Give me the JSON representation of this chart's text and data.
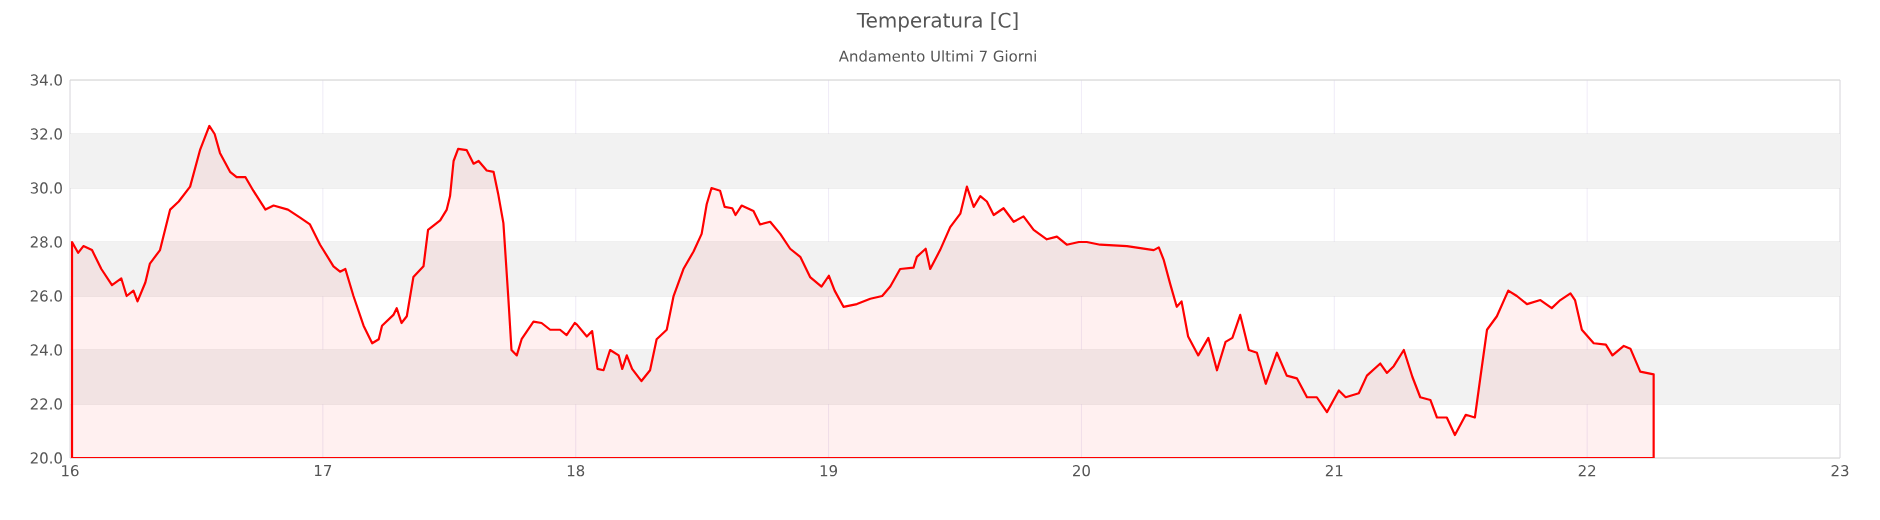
{
  "chart_data": {
    "type": "area",
    "title": "Temperatura [C]",
    "subtitle": "Andamento Ultimi 7 Giorni",
    "xlim": [
      16,
      23
    ],
    "ylim": [
      20,
      34
    ],
    "xticks": [
      16,
      17,
      18,
      19,
      20,
      21,
      22,
      23
    ],
    "yticks": [
      {
        "value": 20,
        "label": "20.0"
      },
      {
        "value": 22,
        "label": "22.0"
      },
      {
        "value": 24,
        "label": "24.0"
      },
      {
        "value": 26,
        "label": "26.0"
      },
      {
        "value": 28,
        "label": "28.0"
      },
      {
        "value": 30,
        "label": "30.0"
      },
      {
        "value": 32,
        "label": "32.0"
      },
      {
        "value": 34,
        "label": "34.0"
      }
    ],
    "grid": true,
    "bands": [
      {
        "axis": "y",
        "from": 22,
        "to": 24,
        "color": "#f2f2f2"
      },
      {
        "axis": "y",
        "from": 26,
        "to": 28,
        "color": "#f2f2f2"
      },
      {
        "axis": "y",
        "from": 30,
        "to": 32,
        "color": "#f2f2f2"
      }
    ],
    "series": [
      {
        "color": "#ff0000",
        "x": [
          16.008,
          16.032,
          16.053,
          16.087,
          16.124,
          16.166,
          16.203,
          16.224,
          16.251,
          16.267,
          16.298,
          16.316,
          16.356,
          16.396,
          16.43,
          16.475,
          16.514,
          16.551,
          16.572,
          16.593,
          16.633,
          16.659,
          16.694,
          16.725,
          16.773,
          16.805,
          16.862,
          16.91,
          16.949,
          16.989,
          17.042,
          17.068,
          17.089,
          17.121,
          17.161,
          17.195,
          17.221,
          17.234,
          17.279,
          17.292,
          17.311,
          17.332,
          17.358,
          17.398,
          17.416,
          17.464,
          17.49,
          17.503,
          17.517,
          17.535,
          17.569,
          17.596,
          17.616,
          17.648,
          17.675,
          17.693,
          17.714,
          17.733,
          17.746,
          17.767,
          17.786,
          17.833,
          17.865,
          17.899,
          17.938,
          17.964,
          17.996,
          18.004,
          18.044,
          18.065,
          18.086,
          18.11,
          18.136,
          18.17,
          18.184,
          18.202,
          18.223,
          18.26,
          18.294,
          18.32,
          18.36,
          18.387,
          18.426,
          18.466,
          18.498,
          18.518,
          18.537,
          18.571,
          18.589,
          18.619,
          18.632,
          18.656,
          18.703,
          18.729,
          18.769,
          18.809,
          18.848,
          18.888,
          18.927,
          18.972,
          19.001,
          19.024,
          19.059,
          19.112,
          19.165,
          19.212,
          19.244,
          19.283,
          19.336,
          19.349,
          19.384,
          19.402,
          19.441,
          19.481,
          19.521,
          19.547,
          19.574,
          19.6,
          19.626,
          19.653,
          19.692,
          19.732,
          19.771,
          19.811,
          19.863,
          19.903,
          19.942,
          19.99,
          20.021,
          20.074,
          20.18,
          20.286,
          20.306,
          20.325,
          20.351,
          20.377,
          20.396,
          20.422,
          20.462,
          20.502,
          20.536,
          20.57,
          20.597,
          20.628,
          20.662,
          20.694,
          20.729,
          20.773,
          20.812,
          20.852,
          20.892,
          20.931,
          20.971,
          21.018,
          21.045,
          21.097,
          21.129,
          21.182,
          21.208,
          21.235,
          21.275,
          21.309,
          21.34,
          21.38,
          21.406,
          21.445,
          21.477,
          21.52,
          21.556,
          21.578,
          21.604,
          21.643,
          21.688,
          21.722,
          21.762,
          21.815,
          21.86,
          21.894,
          21.934,
          21.952,
          21.979,
          22.026,
          22.074,
          22.1,
          22.145,
          22.171,
          22.21,
          22.263
        ],
        "values": [
          28.0,
          27.6,
          27.85,
          27.7,
          27.0,
          26.4,
          26.65,
          26.0,
          26.2,
          25.8,
          26.5,
          27.2,
          27.7,
          29.2,
          29.5,
          30.05,
          31.4,
          32.3,
          32.0,
          31.3,
          30.6,
          30.4,
          30.4,
          29.9,
          29.2,
          29.35,
          29.2,
          28.9,
          28.65,
          27.9,
          27.1,
          26.9,
          27.0,
          26.0,
          24.9,
          24.25,
          24.4,
          24.9,
          25.3,
          25.55,
          25.0,
          25.25,
          26.7,
          27.1,
          28.45,
          28.8,
          29.2,
          29.7,
          31.0,
          31.45,
          31.4,
          30.9,
          31.0,
          30.65,
          30.6,
          29.8,
          28.7,
          26.0,
          24.0,
          23.8,
          24.4,
          25.05,
          25.0,
          24.75,
          24.75,
          24.55,
          25.0,
          24.95,
          24.5,
          24.7,
          23.3,
          23.25,
          24.0,
          23.8,
          23.3,
          23.8,
          23.3,
          22.85,
          23.25,
          24.4,
          24.75,
          26.0,
          27.0,
          27.65,
          28.3,
          29.4,
          30.0,
          29.9,
          29.3,
          29.25,
          29.0,
          29.35,
          29.15,
          28.65,
          28.75,
          28.3,
          27.75,
          27.45,
          26.7,
          26.35,
          26.75,
          26.2,
          25.6,
          25.7,
          25.9,
          26.0,
          26.35,
          27.0,
          27.05,
          27.45,
          27.75,
          27.0,
          27.7,
          28.55,
          29.05,
          30.05,
          29.3,
          29.7,
          29.5,
          29.0,
          29.25,
          28.75,
          28.95,
          28.45,
          28.1,
          28.2,
          27.9,
          28.0,
          28.0,
          27.9,
          27.85,
          27.7,
          27.8,
          27.35,
          26.45,
          25.6,
          25.8,
          24.5,
          23.8,
          24.45,
          23.25,
          24.3,
          24.45,
          25.3,
          24.0,
          23.9,
          22.75,
          23.9,
          23.05,
          22.95,
          22.25,
          22.25,
          21.7,
          22.5,
          22.25,
          22.4,
          23.05,
          23.5,
          23.15,
          23.4,
          24.0,
          23.0,
          22.25,
          22.15,
          21.5,
          21.5,
          20.85,
          21.6,
          21.5,
          23.0,
          24.75,
          25.25,
          26.2,
          26.0,
          25.7,
          25.85,
          25.55,
          25.85,
          26.1,
          25.85,
          24.75,
          24.25,
          24.2,
          23.8,
          24.15,
          24.05,
          23.2,
          23.1
        ]
      }
    ]
  }
}
